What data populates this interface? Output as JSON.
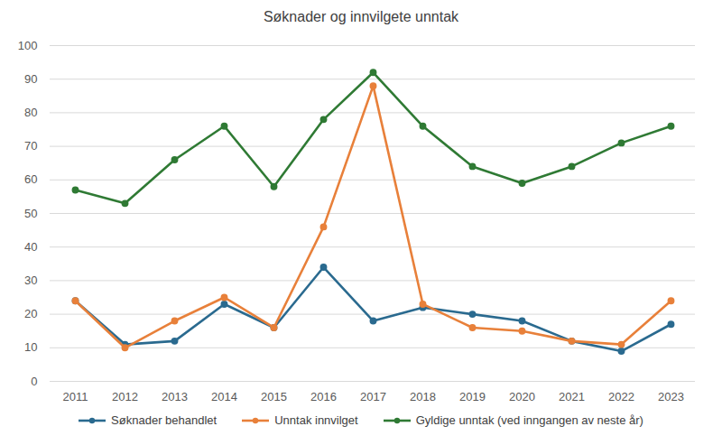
{
  "chart_data": {
    "type": "line",
    "title": "Søknader og innvilgete unntak",
    "categories": [
      "2011",
      "2012",
      "2013",
      "2014",
      "2015",
      "2016",
      "2017",
      "2018",
      "2019",
      "2020",
      "2021",
      "2022",
      "2023"
    ],
    "series": [
      {
        "name": "Søknader behandlet",
        "color": "#2a6a8f",
        "marker": "circle",
        "values": [
          24,
          11,
          12,
          23,
          16,
          34,
          18,
          22,
          20,
          18,
          12,
          9,
          17
        ]
      },
      {
        "name": "Unntak innvilget",
        "color": "#e8803a",
        "marker": "circle",
        "values": [
          24,
          10,
          18,
          25,
          16,
          46,
          88,
          23,
          16,
          15,
          12,
          11,
          24
        ]
      },
      {
        "name": "Gyldige unntak (ved inngangen av neste år)",
        "color": "#2f7a34",
        "marker": "circle",
        "values": [
          57,
          53,
          66,
          76,
          58,
          78,
          92,
          76,
          64,
          59,
          64,
          71,
          76
        ]
      }
    ],
    "ylim": [
      0,
      100
    ],
    "yticks": [
      0,
      10,
      20,
      30,
      40,
      50,
      60,
      70,
      80,
      90,
      100
    ],
    "grid": true,
    "legend": "bottom"
  }
}
